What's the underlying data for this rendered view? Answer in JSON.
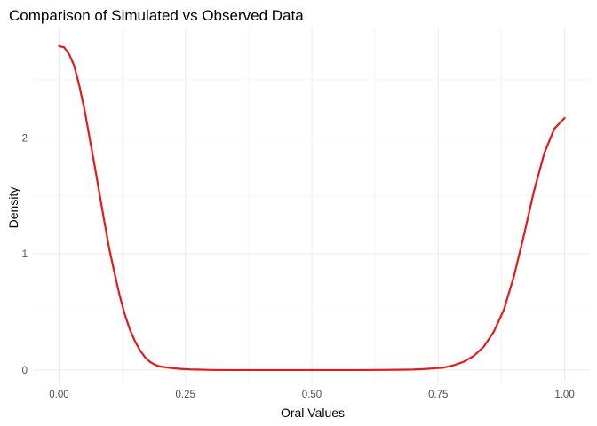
{
  "chart_data": {
    "type": "line",
    "title": "Comparison of Simulated vs Observed Data",
    "xlabel": "Oral Values",
    "ylabel": "Density",
    "xlim": [
      -0.05,
      1.05
    ],
    "ylim": [
      -0.1,
      2.95
    ],
    "x_ticks": [
      0.0,
      0.25,
      0.5,
      0.75,
      1.0
    ],
    "x_tick_labels": [
      "0.00",
      "0.25",
      "0.50",
      "0.75",
      "1.00"
    ],
    "y_ticks": [
      0,
      1,
      2
    ],
    "y_tick_labels": [
      "0",
      "1",
      "2"
    ],
    "grid": true,
    "legend": "none",
    "series": [
      {
        "color": "#e41a1c",
        "x": [
          0.0,
          0.01,
          0.02,
          0.03,
          0.04,
          0.05,
          0.06,
          0.07,
          0.08,
          0.09,
          0.1,
          0.11,
          0.12,
          0.13,
          0.14,
          0.15,
          0.16,
          0.17,
          0.18,
          0.19,
          0.2,
          0.22,
          0.24,
          0.26,
          0.28,
          0.3,
          0.33,
          0.4,
          0.5,
          0.6,
          0.67,
          0.7,
          0.72,
          0.74,
          0.76,
          0.78,
          0.8,
          0.82,
          0.84,
          0.86,
          0.88,
          0.9,
          0.92,
          0.94,
          0.96,
          0.98,
          1.0
        ],
        "y": [
          2.79,
          2.78,
          2.72,
          2.62,
          2.45,
          2.25,
          2.01,
          1.77,
          1.52,
          1.27,
          1.03,
          0.83,
          0.64,
          0.48,
          0.35,
          0.25,
          0.17,
          0.11,
          0.07,
          0.045,
          0.03,
          0.018,
          0.01,
          0.005,
          0.003,
          0.001,
          0.0,
          0.0,
          0.0,
          0.0,
          0.002,
          0.004,
          0.008,
          0.014,
          0.02,
          0.04,
          0.07,
          0.12,
          0.2,
          0.33,
          0.52,
          0.81,
          1.17,
          1.55,
          1.87,
          2.08,
          2.17
        ]
      }
    ]
  }
}
